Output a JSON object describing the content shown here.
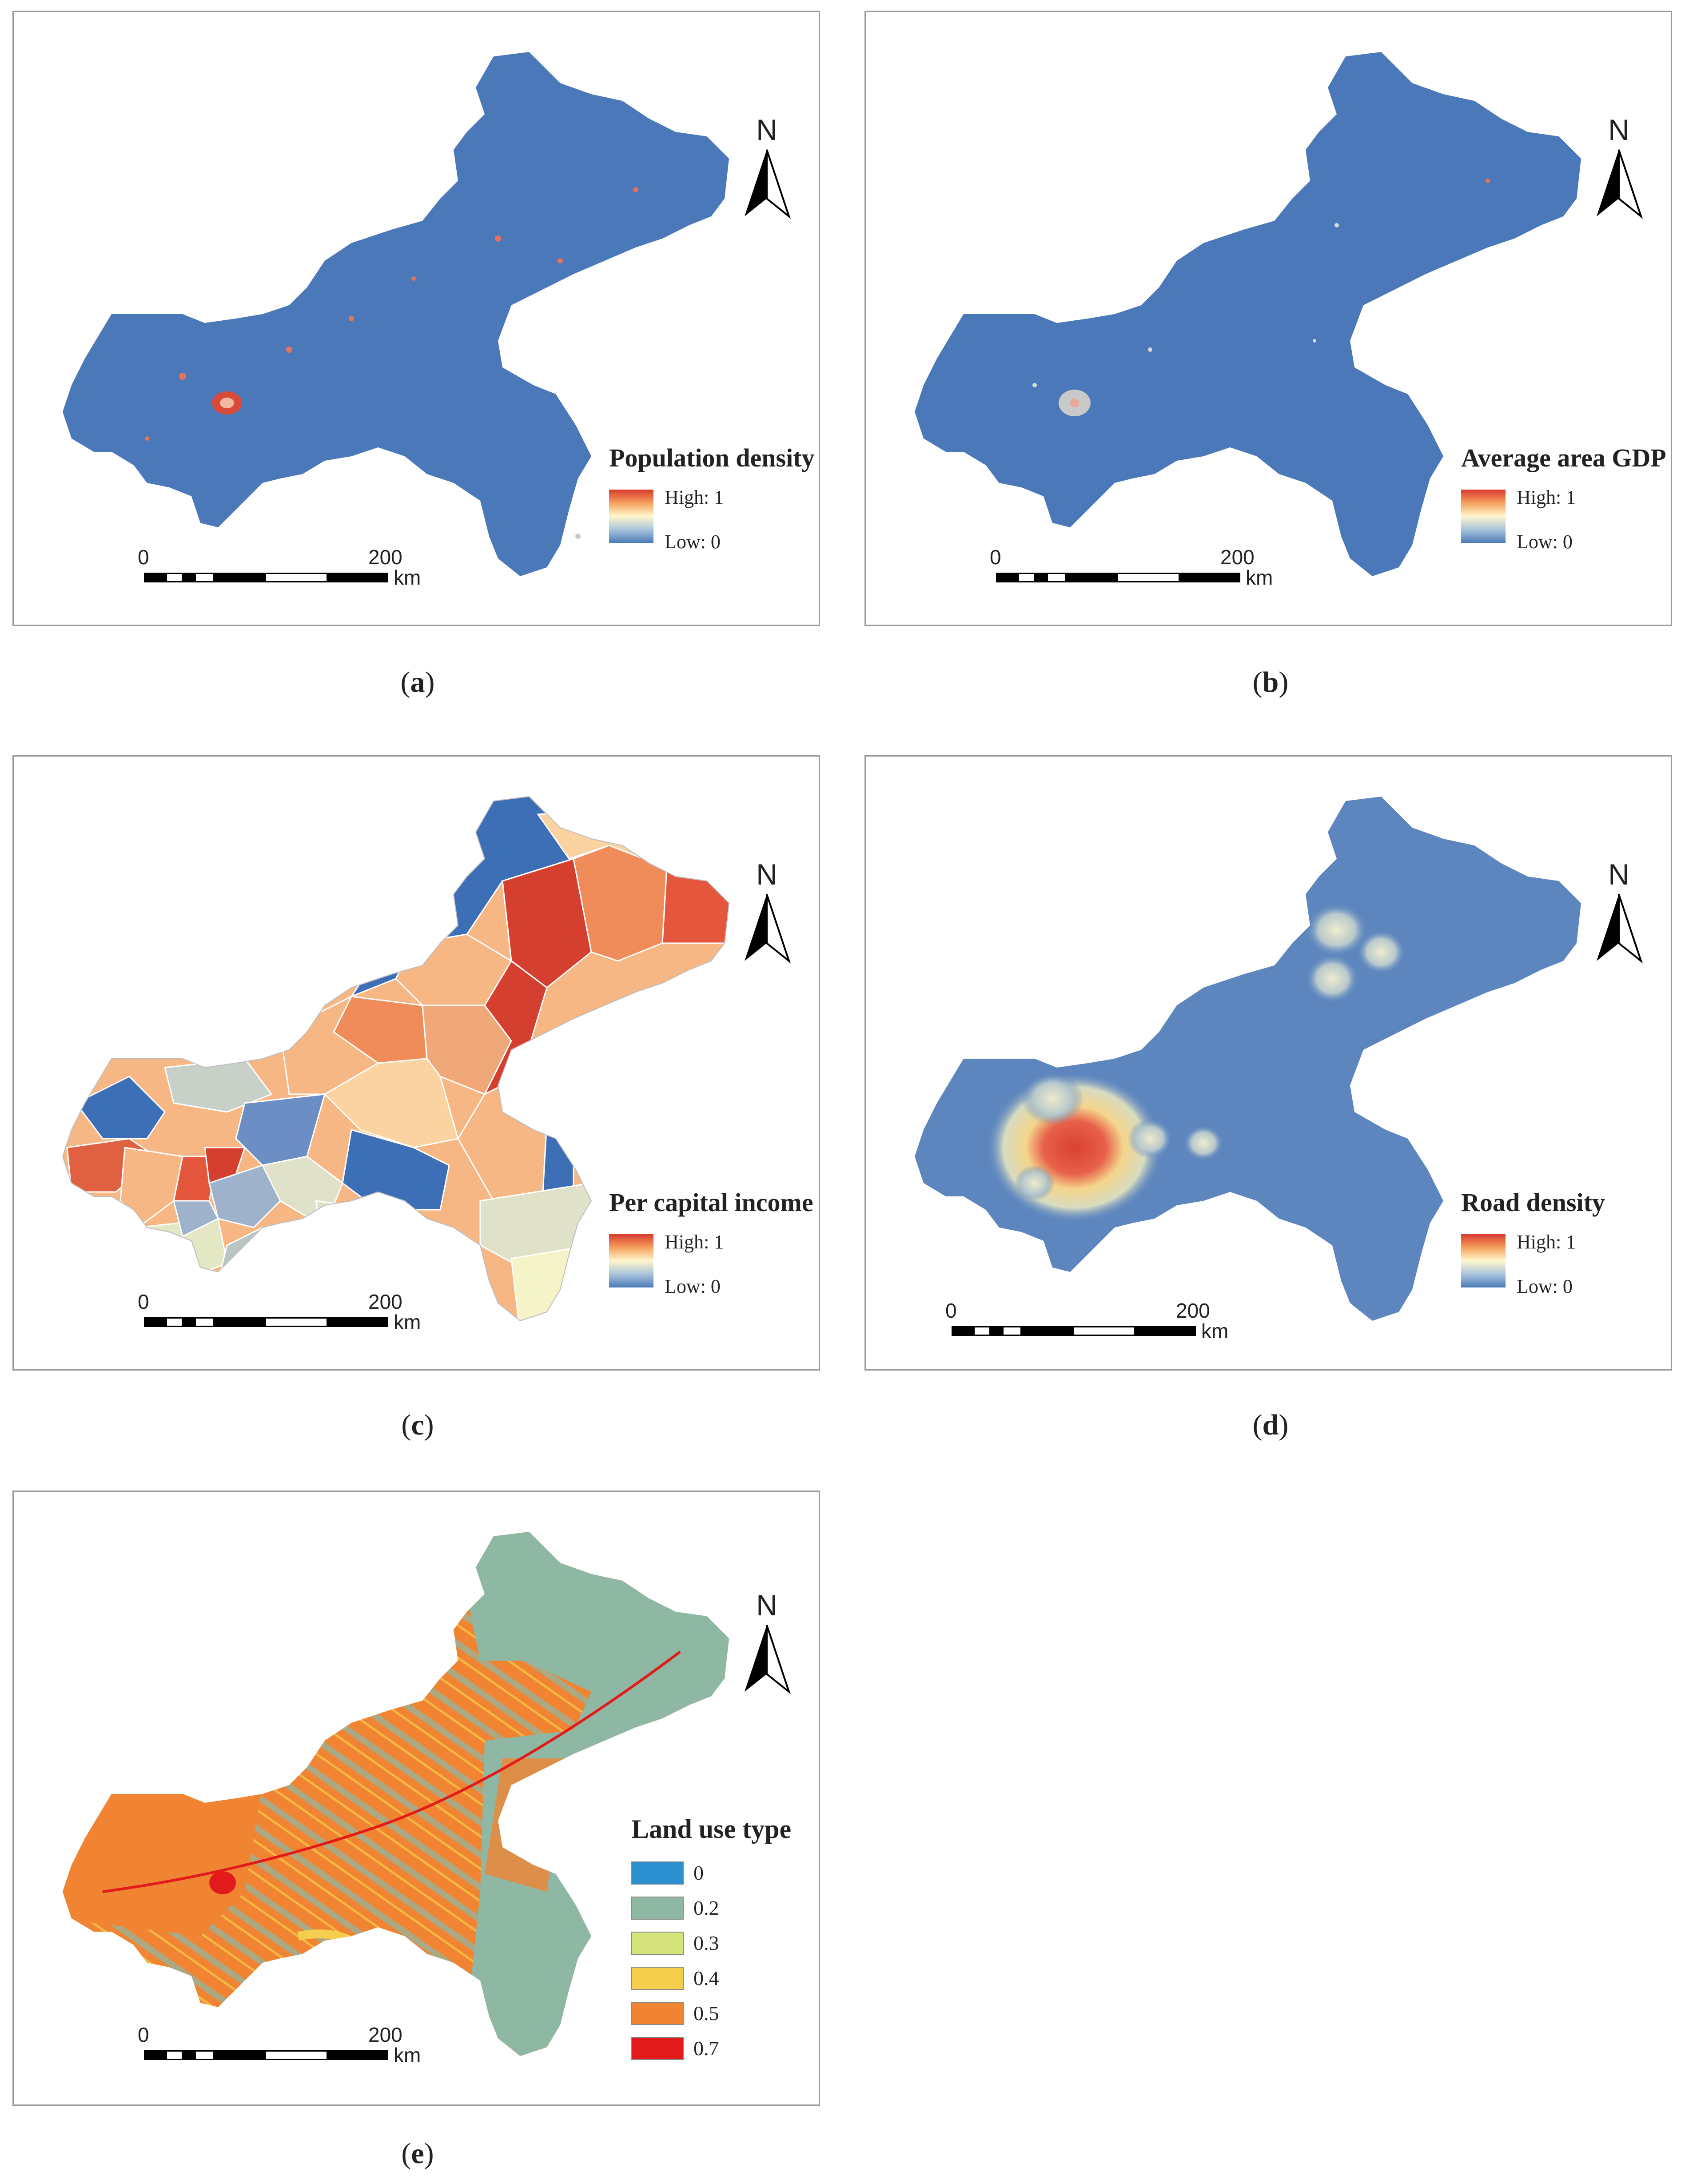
{
  "north_label": "N",
  "scale": {
    "start": "0",
    "end": "200",
    "unit": "km"
  },
  "continuous_panels": [
    {
      "caption": "a",
      "legend_title": "Population density",
      "high": "High: 1",
      "low": "Low: 0",
      "fill": "#4a78b8",
      "speckle": "#d84a3a"
    },
    {
      "caption": "b",
      "legend_title": "Average area GDP",
      "high": "High: 1",
      "low": "Low: 0",
      "fill": "#4a78b8",
      "speckle": "#c9c9c9"
    },
    {
      "caption": "d",
      "legend_title": "Road density",
      "high": "High: 1",
      "low": "Low: 0",
      "fill": "#5d86bf",
      "speckle": "#d9412f"
    }
  ],
  "income_panel": {
    "caption": "c",
    "legend_title": "Per capital income",
    "high": "High: 1",
    "low": "Low: 0"
  },
  "landuse_panel": {
    "caption": "e",
    "legend_title": "Land use type",
    "classes": [
      {
        "label": "0",
        "color": "#2b8fd0"
      },
      {
        "label": "0.2",
        "color": "#8fb8a4"
      },
      {
        "label": "0.3",
        "color": "#d4e27a"
      },
      {
        "label": "0.4",
        "color": "#f6ce4d"
      },
      {
        "label": "0.5",
        "color": "#f08432"
      },
      {
        "label": "0.7",
        "color": "#e31a1c"
      }
    ]
  },
  "ramp_colors": [
    "#d73a2e",
    "#f6a05c",
    "#fff7cc",
    "#a9c4dc",
    "#4a7bb7"
  ]
}
